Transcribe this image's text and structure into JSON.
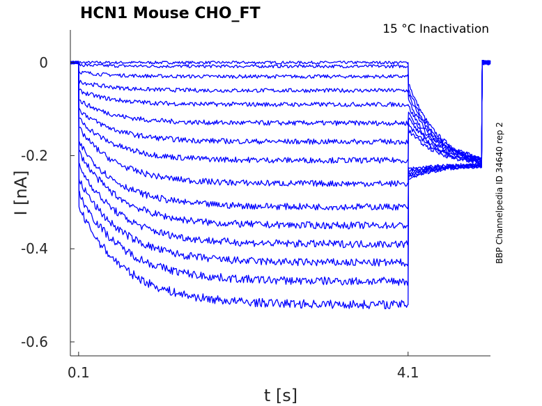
{
  "chart_data": {
    "type": "line",
    "title": "HCN1  Mouse  CHO_FT",
    "annotation": "15 °C  Inactivation",
    "side_label": "BBP Channelpedia ID 34640 rep 2",
    "xlabel": "t [s]",
    "ylabel": "I [nA]",
    "xlim": [
      0.0,
      5.1
    ],
    "ylim": [
      -0.63,
      0.07
    ],
    "xticks": [
      0.1,
      4.1
    ],
    "xtick_labels": [
      "0.1",
      "4.1"
    ],
    "yticks": [
      0,
      -0.2,
      -0.4,
      -0.6
    ],
    "ytick_labels": [
      "0",
      "-0.2",
      "-0.4",
      "-0.6"
    ],
    "grid": false,
    "series_color": "#0000ff",
    "stim_start": 0.1,
    "stim_end": 4.1,
    "record_end": 5.0,
    "tail_current": -0.22,
    "series": [
      {
        "initial": 0.0,
        "steady": 0.0
      },
      {
        "initial": -0.005,
        "steady": -0.008
      },
      {
        "initial": -0.02,
        "steady": -0.03
      },
      {
        "initial": -0.04,
        "steady": -0.06
      },
      {
        "initial": -0.06,
        "steady": -0.09
      },
      {
        "initial": -0.08,
        "steady": -0.13
      },
      {
        "initial": -0.1,
        "steady": -0.17
      },
      {
        "initial": -0.12,
        "steady": -0.21
      },
      {
        "initial": -0.14,
        "steady": -0.26
      },
      {
        "initial": -0.17,
        "steady": -0.31
      },
      {
        "initial": -0.19,
        "steady": -0.35
      },
      {
        "initial": -0.22,
        "steady": -0.39
      },
      {
        "initial": -0.25,
        "steady": -0.43
      },
      {
        "initial": -0.28,
        "steady": -0.47
      },
      {
        "initial": -0.31,
        "steady": -0.52
      }
    ]
  }
}
